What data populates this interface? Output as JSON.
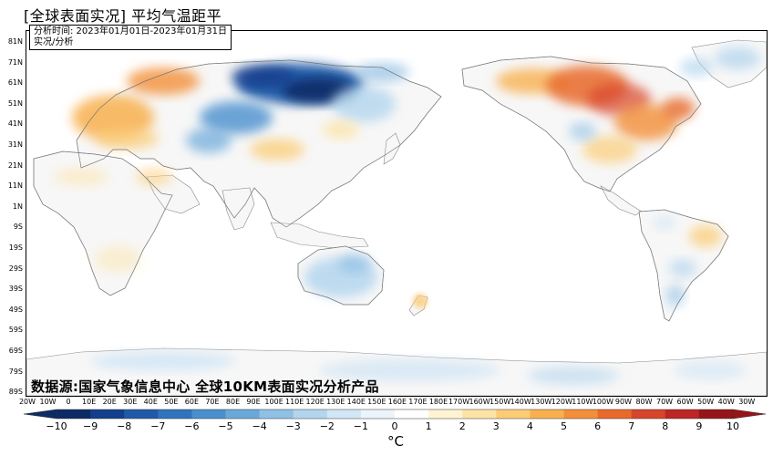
{
  "title": "[全球表面实况] 平均气温距平",
  "info": {
    "line1": "分析时间: 2023年01月01日-2023年01月31日",
    "line2": "实况/分析"
  },
  "source": "数据源:国家气象信息中心 全球10KM表面实况分析产品",
  "lat_labels": [
    "81N",
    "71N",
    "61N",
    "51N",
    "41N",
    "31N",
    "21N",
    "11N",
    "1N",
    "9S",
    "19S",
    "29S",
    "39S",
    "49S",
    "59S",
    "69S",
    "79S",
    "89S"
  ],
  "lon_labels": [
    "20W",
    "10W",
    "0",
    "10E",
    "20E",
    "30E",
    "40E",
    "50E",
    "60E",
    "70E",
    "80E",
    "90E",
    "100E",
    "110E",
    "120E",
    "130E",
    "140E",
    "150E",
    "160E",
    "170E",
    "180E",
    "170W",
    "160W",
    "150W",
    "140W",
    "130W",
    "120W",
    "110W",
    "100W",
    "90W",
    "80W",
    "70W",
    "60W",
    "50W",
    "40W",
    "30W"
  ],
  "colorbar": {
    "ticks": [
      "−10",
      "−9",
      "−8",
      "−7",
      "−6",
      "−5",
      "−4",
      "−3",
      "−2",
      "−1",
      "0",
      "1",
      "2",
      "3",
      "4",
      "5",
      "6",
      "7",
      "8",
      "9",
      "10"
    ],
    "colors": [
      "#0c2a66",
      "#123e8c",
      "#1f5aa8",
      "#2f74bd",
      "#4a8fcd",
      "#6aa8da",
      "#8fc0e5",
      "#b3d5ee",
      "#d3e6f5",
      "#ecf4fb",
      "#ffffff",
      "#fff3d2",
      "#fde3a4",
      "#fbcc76",
      "#f8b04f",
      "#f38f38",
      "#e86a2a",
      "#d8452a",
      "#bd2624",
      "#961518"
    ],
    "unit": "°C"
  }
}
